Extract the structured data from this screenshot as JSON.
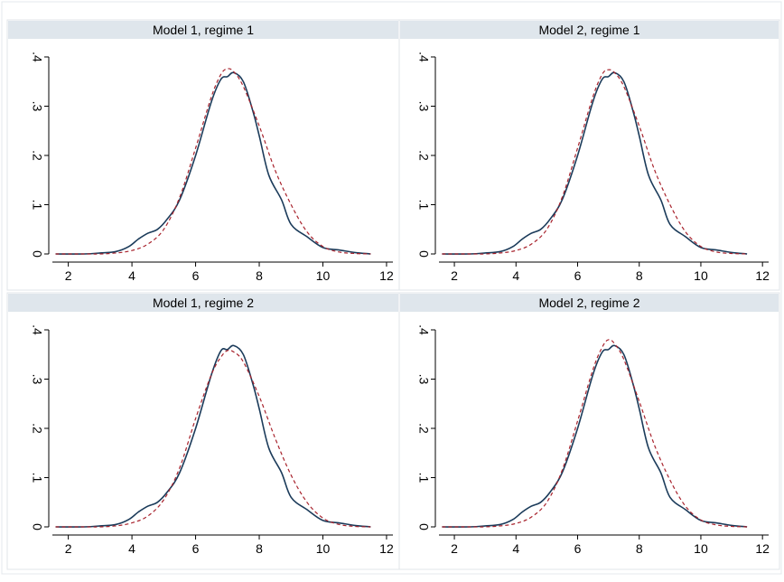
{
  "colors": {
    "background": "#ffffff",
    "frame": "#e4e8ec",
    "title_bar": "#dfe6ec",
    "panel_border": "#e0e5ea",
    "axis": "#000000",
    "series_solid": "#1b3b5a",
    "series_dashed": "#a8232d"
  },
  "chart_data": [
    {
      "type": "line",
      "title": "Model 1, regime 1",
      "xlim": [
        1.5,
        12.2
      ],
      "ylim": [
        0,
        0.4
      ],
      "xticks": [
        "2",
        "4",
        "6",
        "8",
        "10",
        "12"
      ],
      "yticks": [
        "0",
        ".1",
        ".2",
        ".3",
        ".4"
      ],
      "grid": false,
      "series": [
        {
          "style": "solid",
          "x": [
            1.6,
            2.5,
            3.0,
            3.5,
            3.9,
            4.2,
            4.5,
            4.8,
            5.1,
            5.5,
            6.0,
            6.5,
            6.8,
            7.0,
            7.2,
            7.5,
            7.8,
            8.0,
            8.3,
            8.7,
            9.0,
            9.5,
            10.0,
            10.5,
            11.0,
            11.5
          ],
          "y": [
            0.0,
            0.0,
            0.002,
            0.005,
            0.015,
            0.03,
            0.042,
            0.05,
            0.07,
            0.11,
            0.2,
            0.31,
            0.355,
            0.36,
            0.368,
            0.35,
            0.29,
            0.24,
            0.16,
            0.11,
            0.06,
            0.035,
            0.013,
            0.008,
            0.003,
            0.0
          ]
        },
        {
          "style": "dashed",
          "x": [
            1.6,
            2.5,
            3.0,
            3.5,
            4.0,
            4.5,
            5.0,
            5.5,
            6.0,
            6.5,
            6.8,
            7.0,
            7.2,
            7.5,
            8.0,
            8.5,
            9.0,
            9.5,
            10.0,
            10.5,
            11.0,
            11.5
          ],
          "y": [
            0.0,
            0.0,
            0.0,
            0.002,
            0.007,
            0.02,
            0.05,
            0.115,
            0.215,
            0.32,
            0.365,
            0.376,
            0.37,
            0.34,
            0.26,
            0.17,
            0.1,
            0.045,
            0.015,
            0.004,
            0.001,
            0.0
          ]
        }
      ]
    },
    {
      "type": "line",
      "title": "Model 2, regime 1",
      "xlim": [
        1.5,
        12.2
      ],
      "ylim": [
        0,
        0.4
      ],
      "xticks": [
        "2",
        "4",
        "6",
        "8",
        "10",
        "12"
      ],
      "yticks": [
        "0",
        ".1",
        ".2",
        ".3",
        ".4"
      ],
      "grid": false,
      "series": [
        {
          "style": "solid",
          "x": [
            1.6,
            2.5,
            3.0,
            3.5,
            3.9,
            4.2,
            4.5,
            4.8,
            5.1,
            5.5,
            6.0,
            6.5,
            6.8,
            7.0,
            7.2,
            7.5,
            7.8,
            8.0,
            8.3,
            8.7,
            9.0,
            9.5,
            10.0,
            10.5,
            11.0,
            11.5
          ],
          "y": [
            0.0,
            0.0,
            0.002,
            0.005,
            0.015,
            0.03,
            0.042,
            0.05,
            0.07,
            0.11,
            0.2,
            0.31,
            0.355,
            0.36,
            0.368,
            0.35,
            0.29,
            0.24,
            0.16,
            0.11,
            0.06,
            0.035,
            0.013,
            0.008,
            0.003,
            0.0
          ]
        },
        {
          "style": "dashed",
          "x": [
            1.6,
            2.5,
            3.0,
            3.5,
            4.0,
            4.5,
            5.0,
            5.5,
            6.0,
            6.5,
            6.8,
            7.0,
            7.2,
            7.5,
            8.0,
            8.5,
            9.0,
            9.5,
            10.0,
            10.5,
            11.0,
            11.5
          ],
          "y": [
            0.0,
            0.0,
            0.0,
            0.002,
            0.007,
            0.02,
            0.05,
            0.115,
            0.215,
            0.32,
            0.365,
            0.374,
            0.368,
            0.34,
            0.26,
            0.17,
            0.1,
            0.045,
            0.015,
            0.004,
            0.001,
            0.0
          ]
        }
      ]
    },
    {
      "type": "line",
      "title": "Model 1, regime 2",
      "xlim": [
        1.5,
        12.2
      ],
      "ylim": [
        0,
        0.4
      ],
      "xticks": [
        "2",
        "4",
        "6",
        "8",
        "10",
        "12"
      ],
      "yticks": [
        "0",
        ".1",
        ".2",
        ".3",
        ".4"
      ],
      "grid": false,
      "series": [
        {
          "style": "solid",
          "x": [
            1.6,
            2.5,
            3.0,
            3.5,
            3.9,
            4.2,
            4.5,
            4.8,
            5.1,
            5.5,
            6.0,
            6.5,
            6.8,
            7.0,
            7.2,
            7.5,
            7.8,
            8.0,
            8.3,
            8.7,
            9.0,
            9.5,
            10.0,
            10.5,
            11.0,
            11.5
          ],
          "y": [
            0.0,
            0.0,
            0.002,
            0.005,
            0.015,
            0.03,
            0.042,
            0.05,
            0.07,
            0.11,
            0.2,
            0.31,
            0.358,
            0.36,
            0.368,
            0.35,
            0.29,
            0.24,
            0.16,
            0.11,
            0.06,
            0.035,
            0.013,
            0.008,
            0.003,
            0.0
          ]
        },
        {
          "style": "dashed",
          "x": [
            1.6,
            2.5,
            3.0,
            3.5,
            4.0,
            4.5,
            5.0,
            5.5,
            6.0,
            6.5,
            6.8,
            7.0,
            7.2,
            7.5,
            8.0,
            8.5,
            9.0,
            9.5,
            10.0,
            10.5,
            11.0,
            11.5
          ],
          "y": [
            0.0,
            0.0,
            0.0,
            0.002,
            0.008,
            0.022,
            0.055,
            0.12,
            0.22,
            0.31,
            0.345,
            0.358,
            0.355,
            0.335,
            0.265,
            0.18,
            0.105,
            0.05,
            0.018,
            0.005,
            0.001,
            0.0
          ]
        }
      ]
    },
    {
      "type": "line",
      "title": "Model 2, regime 2",
      "xlim": [
        1.5,
        12.2
      ],
      "ylim": [
        0,
        0.4
      ],
      "xticks": [
        "2",
        "4",
        "6",
        "8",
        "10",
        "12"
      ],
      "yticks": [
        "0",
        ".1",
        ".2",
        ".3",
        ".4"
      ],
      "grid": false,
      "series": [
        {
          "style": "solid",
          "x": [
            1.6,
            2.5,
            3.0,
            3.5,
            3.9,
            4.2,
            4.5,
            4.8,
            5.1,
            5.5,
            6.0,
            6.5,
            6.8,
            7.0,
            7.2,
            7.5,
            7.8,
            8.0,
            8.3,
            8.7,
            9.0,
            9.5,
            10.0,
            10.5,
            11.0,
            11.5
          ],
          "y": [
            0.0,
            0.0,
            0.002,
            0.005,
            0.015,
            0.03,
            0.042,
            0.05,
            0.07,
            0.11,
            0.2,
            0.31,
            0.355,
            0.36,
            0.368,
            0.35,
            0.29,
            0.24,
            0.16,
            0.11,
            0.06,
            0.035,
            0.013,
            0.008,
            0.003,
            0.0
          ]
        },
        {
          "style": "dashed",
          "x": [
            1.6,
            2.5,
            3.0,
            3.5,
            4.0,
            4.5,
            5.0,
            5.5,
            6.0,
            6.5,
            6.8,
            7.0,
            7.2,
            7.5,
            8.0,
            8.5,
            9.0,
            9.5,
            10.0,
            10.5,
            11.0,
            11.5
          ],
          "y": [
            0.0,
            0.0,
            0.0,
            0.002,
            0.007,
            0.02,
            0.05,
            0.115,
            0.215,
            0.32,
            0.365,
            0.38,
            0.372,
            0.34,
            0.255,
            0.165,
            0.095,
            0.042,
            0.014,
            0.004,
            0.001,
            0.0
          ]
        }
      ]
    }
  ]
}
